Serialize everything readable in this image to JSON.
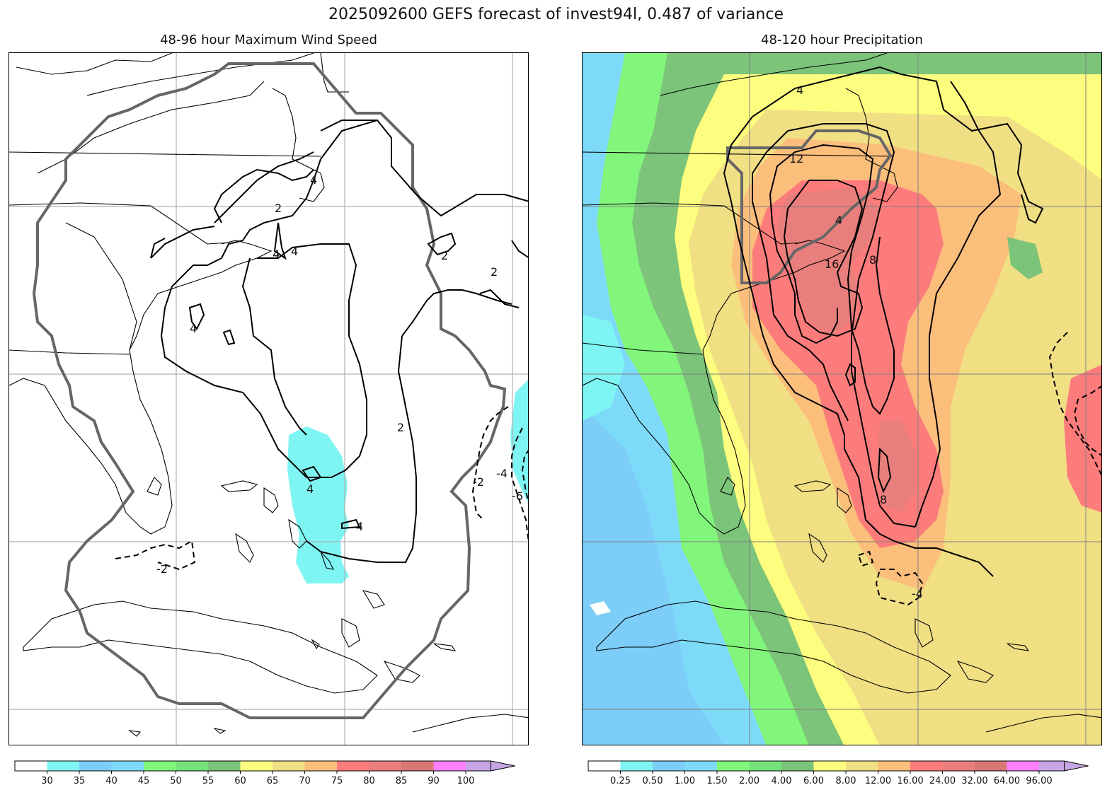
{
  "title": "2025092600 GEFS forecast of invest94l, 0.487 of variance",
  "panels": {
    "left": {
      "title": "48-96 hour Maximum Wind Speed"
    },
    "right": {
      "title": "48-120 hour Precipitation"
    }
  },
  "colorbars": {
    "wind": {
      "labels": [
        "30",
        "35",
        "40",
        "45",
        "50",
        "55",
        "60",
        "65",
        "70",
        "75",
        "80",
        "85",
        "90",
        "100"
      ],
      "colors": [
        "#ffffff",
        "#7ef5f3",
        "#7ccdf7",
        "#7ddaf9",
        "#82f67a",
        "#75e379",
        "#7cc47a",
        "#fdfd7f",
        "#f1df84",
        "#fbbe7b",
        "#fc7c7b",
        "#e97f7c",
        "#d97777",
        "#fd80fd",
        "#c6a6e4"
      ]
    },
    "precip": {
      "labels": [
        "0.25",
        "0.50",
        "1.00",
        "1.50",
        "2.00",
        "4.00",
        "6.00",
        "8.00",
        "12.00",
        "16.00",
        "24.00",
        "32.00",
        "64.00",
        "96.00"
      ],
      "colors": [
        "#ffffff",
        "#7ef5f3",
        "#7ccdf7",
        "#7ddaf9",
        "#82f67a",
        "#75e379",
        "#7cc47a",
        "#fdfd7f",
        "#f1df84",
        "#fbbe7b",
        "#fc7c7b",
        "#e97f7c",
        "#d97777",
        "#fd80fd",
        "#c6a6e4"
      ]
    }
  },
  "contour_labels": {
    "left": [
      "2",
      "4",
      "4",
      "4",
      "4",
      "2",
      "2",
      "2",
      "2",
      "4",
      "4",
      "-2",
      "-4",
      "-2",
      "-6",
      "-2"
    ],
    "right": [
      "4",
      "12",
      "4",
      "16",
      "8",
      "8",
      "-4"
    ]
  }
}
